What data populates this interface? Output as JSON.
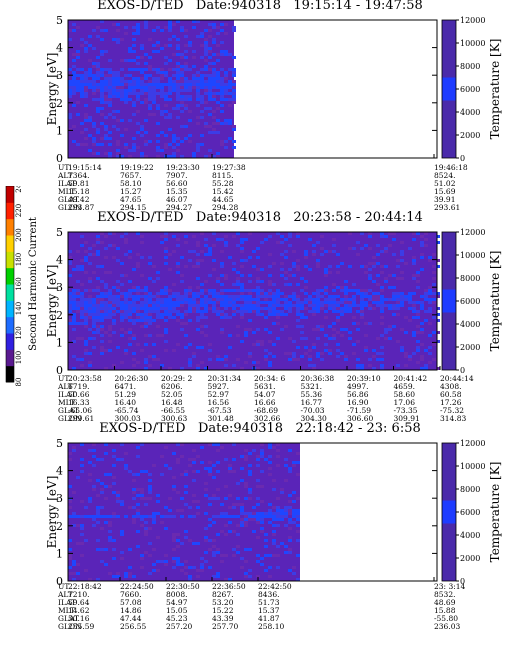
{
  "colors": {
    "background_purple": "#5a24b8",
    "mid_blue": "#3c3ce6",
    "bright_blue": "#1e46ff",
    "temp_scale_top": "#4a2aaa",
    "temp_scale_band": "#1e3cff"
  },
  "side_colorbar": {
    "label": "Second Harmonic Current",
    "ticks": [
      "80",
      "100",
      "120",
      "140",
      "160",
      "180",
      "200",
      "220",
      "240"
    ],
    "colors": [
      "#000000",
      "#5a1a90",
      "#3020e0",
      "#1e6cff",
      "#00b4ff",
      "#00e0a0",
      "#00d000",
      "#c8e000",
      "#ffd000",
      "#ff8000",
      "#ff2000",
      "#c00000"
    ]
  },
  "chart_data": [
    {
      "type": "heatmap",
      "title": "EXOS-D/TED   Date:940318   19:15:14 - 19:47:58",
      "ylabel": "Energy [eV]",
      "y2label": "Temperature [K]",
      "ylim": [
        0,
        5
      ],
      "y2lim": [
        0,
        12000
      ],
      "yticks": [
        "0",
        "1",
        "2",
        "3",
        "4",
        "5"
      ],
      "y2ticks": [
        "0",
        "2000",
        "4000",
        "6000",
        "8000",
        "10000",
        "12000"
      ],
      "data_extent_fraction": 0.45,
      "ephemeris_labels": [
        "UT",
        "ALT",
        "ILAT",
        "MLT",
        "GLAT",
        "GLON"
      ],
      "ephemeris": [
        {
          "UT": "19:15:14",
          "ALT": "7364.",
          "ILAT": "59.81",
          "MLT": "15.18",
          "GLAT": "49.42",
          "GLON": "293.87"
        },
        {
          "UT": "19:19:22",
          "ALT": "7657.",
          "ILAT": "58.10",
          "MLT": "15.27",
          "GLAT": "47.65",
          "GLON": "294.15"
        },
        {
          "UT": "19:23:30",
          "ALT": "7907.",
          "ILAT": "56.60",
          "MLT": "15.35",
          "GLAT": "46.07",
          "GLON": "294.27"
        },
        {
          "UT": "19:27:38",
          "ALT": "8115.",
          "ILAT": "55.28",
          "MLT": "15.42",
          "GLAT": "44.65",
          "GLON": "294.28"
        },
        {
          "UT": "19:46:18",
          "ALT": "8524.",
          "ILAT": "51.02",
          "MLT": "15.69",
          "GLAT": "39.91",
          "GLON": "293.61"
        }
      ]
    },
    {
      "type": "heatmap",
      "title": "EXOS-D/TED   Date:940318   20:23:58 - 20:44:14",
      "ylabel": "Energy [eV]",
      "y2label": "Temperature [K]",
      "ylim": [
        0,
        5
      ],
      "y2lim": [
        0,
        12000
      ],
      "yticks": [
        "0",
        "1",
        "2",
        "3",
        "4",
        "5"
      ],
      "y2ticks": [
        "0",
        "2000",
        "4000",
        "6000",
        "8000",
        "10000",
        "12000"
      ],
      "data_extent_fraction": 1.0,
      "ephemeris_labels": [
        "UT",
        "ALT",
        "ILAT",
        "MLT",
        "GLAT",
        "GLON"
      ],
      "ephemeris": [
        {
          "UT": "20:23:58",
          "ALT": "6719.",
          "ILAT": "50.66",
          "MLT": "16.33",
          "GLAT": "-65.06",
          "GLON": "299.61"
        },
        {
          "UT": "20:26:30",
          "ALT": "6471.",
          "ILAT": "51.29",
          "MLT": "16.40",
          "GLAT": "-65.74",
          "GLON": "300.03"
        },
        {
          "UT": "20:29: 2",
          "ALT": "6206.",
          "ILAT": "52.05",
          "MLT": "16.48",
          "GLAT": "-66.55",
          "GLON": "300.63"
        },
        {
          "UT": "20:31:34",
          "ALT": "5927.",
          "ILAT": "52.97",
          "MLT": "16.56",
          "GLAT": "-67.53",
          "GLON": "301.48"
        },
        {
          "UT": "20:34: 6",
          "ALT": "5631.",
          "ILAT": "54.07",
          "MLT": "16.66",
          "GLAT": "-68.69",
          "GLON": "302.66"
        },
        {
          "UT": "20:36:38",
          "ALT": "5321.",
          "ILAT": "55.36",
          "MLT": "16.77",
          "GLAT": "-70.03",
          "GLON": "304.30"
        },
        {
          "UT": "20:39:10",
          "ALT": "4997.",
          "ILAT": "56.86",
          "MLT": "16.90",
          "GLAT": "-71.59",
          "GLON": "306.60"
        },
        {
          "UT": "20:41:42",
          "ALT": "4659.",
          "ILAT": "58.60",
          "MLT": "17.06",
          "GLAT": "-73.35",
          "GLON": "309.91"
        },
        {
          "UT": "20:44:14",
          "ALT": "4308.",
          "ILAT": "60.58",
          "MLT": "17.26",
          "GLAT": "-75.32",
          "GLON": "314.83"
        }
      ]
    },
    {
      "type": "heatmap",
      "title": "EXOS-D/TED   Date:940318   22:18:42 - 23: 6:58",
      "ylabel": "Energy [eV]",
      "y2label": "Temperature [K]",
      "ylim": [
        0,
        5
      ],
      "y2lim": [
        0,
        12000
      ],
      "yticks": [
        "0",
        "1",
        "2",
        "3",
        "4",
        "5"
      ],
      "y2ticks": [
        "0",
        "2000",
        "4000",
        "6000",
        "8000",
        "10000",
        "12000"
      ],
      "data_extent_fraction": 0.63,
      "ephemeris_labels": [
        "UT",
        "ALT",
        "ILAT",
        "MLT",
        "GLAT",
        "GLON"
      ],
      "ephemeris": [
        {
          "UT": "22:18:42",
          "ALT": "7210.",
          "ILAT": "59.64",
          "MLT": "14.62",
          "GLAT": "50.16",
          "GLON": "255.59"
        },
        {
          "UT": "22:24:50",
          "ALT": "7660.",
          "ILAT": "57.08",
          "MLT": "14.86",
          "GLAT": "47.44",
          "GLON": "256.55"
        },
        {
          "UT": "22:30:50",
          "ALT": "8008.",
          "ILAT": "54.97",
          "MLT": "15.05",
          "GLAT": "45.23",
          "GLON": "257.20"
        },
        {
          "UT": "22:36:50",
          "ALT": "8267.",
          "ILAT": "53.20",
          "MLT": "15.22",
          "GLAT": "43.39",
          "GLON": "257.70"
        },
        {
          "UT": "22:42:50",
          "ALT": "8436.",
          "ILAT": "51.73",
          "MLT": "15.37",
          "GLAT": "41.87",
          "GLON": "258.10"
        },
        {
          "UT": "23: 3:14",
          "ALT": "8532.",
          "ILAT": "48.69",
          "MLT": "15.88",
          "GLAT": "-55.80",
          "GLON": "236.03"
        }
      ]
    }
  ]
}
